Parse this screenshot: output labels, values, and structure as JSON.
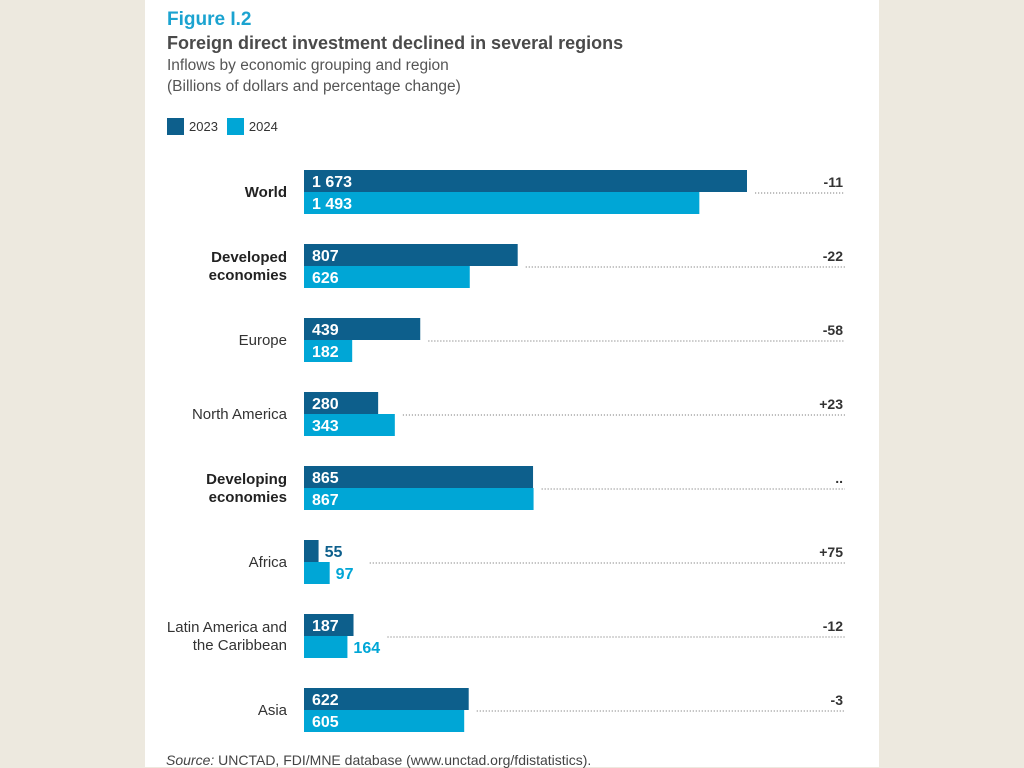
{
  "figure": {
    "label": "Figure I.2",
    "title": "Foreign direct investment declined in several regions",
    "subtitle_1": "Inflows by economic grouping and region",
    "subtitle_2": "(Billions of dollars and percentage change)",
    "source_prefix": "Source:",
    "source_text": " UNCTAD, FDI/MNE database (www.unctad.org/fdistatistics)."
  },
  "legend": [
    {
      "label": "2023",
      "color": "#0d5f8c"
    },
    {
      "label": "2024",
      "color": "#00a6d6"
    }
  ],
  "chart_data": {
    "type": "bar",
    "orientation": "horizontal",
    "title": "Foreign direct investment declined in several regions",
    "subtitle": "Inflows by economic grouping and region (Billions of dollars and percentage change)",
    "xlabel": "",
    "ylabel": "",
    "grid": false,
    "legend_position": "top-left",
    "categories": [
      {
        "label_lines": [
          "World"
        ],
        "bold": true
      },
      {
        "label_lines": [
          "Developed",
          "economies"
        ],
        "bold": true
      },
      {
        "label_lines": [
          "Europe"
        ],
        "bold": false
      },
      {
        "label_lines": [
          "North America"
        ],
        "bold": false
      },
      {
        "label_lines": [
          "Developing",
          "economies"
        ],
        "bold": true
      },
      {
        "label_lines": [
          "Africa"
        ],
        "bold": false
      },
      {
        "label_lines": [
          "Latin America and",
          "the Caribbean"
        ],
        "bold": false
      },
      {
        "label_lines": [
          "Asia"
        ],
        "bold": false
      }
    ],
    "series": [
      {
        "name": "2023",
        "color": "#0d5f8c",
        "values": [
          1673,
          807,
          439,
          280,
          865,
          55,
          187,
          622
        ],
        "value_labels": [
          "1 673",
          "807",
          "439",
          "280",
          "865",
          "55",
          "187",
          "622"
        ]
      },
      {
        "name": "2024",
        "color": "#00a6d6",
        "values": [
          1493,
          626,
          182,
          343,
          867,
          97,
          164,
          605
        ],
        "value_labels": [
          "1 493",
          "626",
          "182",
          "343",
          "867",
          "97",
          "164",
          "605"
        ]
      }
    ],
    "percentage_change": [
      "-11",
      "-22",
      "-58",
      "+23",
      "..",
      "+75",
      "-12",
      "-3"
    ],
    "xlim": [
      0,
      1673
    ]
  }
}
